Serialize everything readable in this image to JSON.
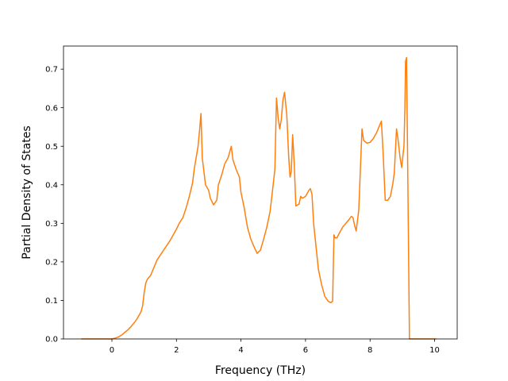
{
  "chart_data": {
    "type": "line",
    "title": "",
    "xlabel": "Frequency (THz)",
    "ylabel": "Partial Density of States",
    "xlim": [
      -1.5,
      10.7
    ],
    "ylim": [
      0.0,
      0.76
    ],
    "xticks": [
      0,
      2,
      4,
      6,
      8,
      10
    ],
    "yticks": [
      0.0,
      0.1,
      0.2,
      0.3,
      0.4,
      0.5,
      0.6,
      0.7
    ],
    "xtick_labels": [
      "0",
      "2",
      "4",
      "6",
      "8",
      "10"
    ],
    "ytick_labels": [
      "0.0",
      "0.1",
      "0.2",
      "0.3",
      "0.4",
      "0.5",
      "0.6",
      "0.7"
    ],
    "grid": false,
    "legend": "none",
    "series": [
      {
        "color": "#ff7f0e",
        "x": [
          -0.95,
          0.0,
          0.1,
          0.2,
          0.3,
          0.4,
          0.5,
          0.6,
          0.7,
          0.8,
          0.9,
          0.95,
          1.0,
          1.05,
          1.1,
          1.2,
          1.3,
          1.4,
          1.6,
          1.8,
          2.0,
          2.1,
          2.2,
          2.3,
          2.4,
          2.5,
          2.55,
          2.62,
          2.67,
          2.72,
          2.76,
          2.8,
          2.9,
          3.0,
          3.05,
          3.15,
          3.25,
          3.3,
          3.4,
          3.5,
          3.6,
          3.7,
          3.75,
          3.85,
          3.95,
          4.0,
          4.1,
          4.2,
          4.3,
          4.4,
          4.5,
          4.6,
          4.7,
          4.8,
          4.9,
          4.97,
          5.05,
          5.1,
          5.15,
          5.2,
          5.25,
          5.3,
          5.35,
          5.42,
          5.48,
          5.52,
          5.56,
          5.6,
          5.65,
          5.7,
          5.8,
          5.85,
          5.9,
          6.0,
          6.1,
          6.15,
          6.2,
          6.25,
          6.3,
          6.4,
          6.5,
          6.6,
          6.7,
          6.78,
          6.84,
          6.88,
          6.92,
          6.97,
          7.05,
          7.15,
          7.25,
          7.35,
          7.42,
          7.47,
          7.52,
          7.57,
          7.65,
          7.75,
          7.8,
          7.9,
          8.0,
          8.1,
          8.2,
          8.3,
          8.35,
          8.4,
          8.47,
          8.55,
          8.63,
          8.7,
          8.75,
          8.82,
          8.87,
          8.93,
          8.98,
          9.05,
          9.08,
          9.1,
          9.13,
          9.16,
          9.22,
          10.05
        ],
        "values": [
          0.0,
          0.0,
          0.002,
          0.005,
          0.01,
          0.017,
          0.024,
          0.033,
          0.043,
          0.055,
          0.07,
          0.085,
          0.12,
          0.145,
          0.155,
          0.165,
          0.185,
          0.205,
          0.23,
          0.255,
          0.285,
          0.302,
          0.315,
          0.34,
          0.37,
          0.405,
          0.44,
          0.475,
          0.5,
          0.545,
          0.585,
          0.47,
          0.4,
          0.385,
          0.365,
          0.348,
          0.36,
          0.4,
          0.425,
          0.455,
          0.47,
          0.5,
          0.465,
          0.44,
          0.42,
          0.38,
          0.34,
          0.29,
          0.26,
          0.24,
          0.222,
          0.23,
          0.258,
          0.29,
          0.33,
          0.38,
          0.44,
          0.625,
          0.575,
          0.545,
          0.57,
          0.62,
          0.64,
          0.58,
          0.47,
          0.42,
          0.435,
          0.53,
          0.455,
          0.345,
          0.35,
          0.37,
          0.365,
          0.37,
          0.385,
          0.39,
          0.375,
          0.3,
          0.26,
          0.18,
          0.14,
          0.11,
          0.098,
          0.094,
          0.098,
          0.27,
          0.262,
          0.262,
          0.275,
          0.29,
          0.3,
          0.31,
          0.318,
          0.315,
          0.295,
          0.28,
          0.335,
          0.545,
          0.515,
          0.508,
          0.51,
          0.52,
          0.535,
          0.555,
          0.565,
          0.49,
          0.36,
          0.36,
          0.37,
          0.4,
          0.43,
          0.545,
          0.515,
          0.47,
          0.445,
          0.5,
          0.6,
          0.72,
          0.73,
          0.5,
          0.0,
          0.0
        ]
      }
    ]
  }
}
